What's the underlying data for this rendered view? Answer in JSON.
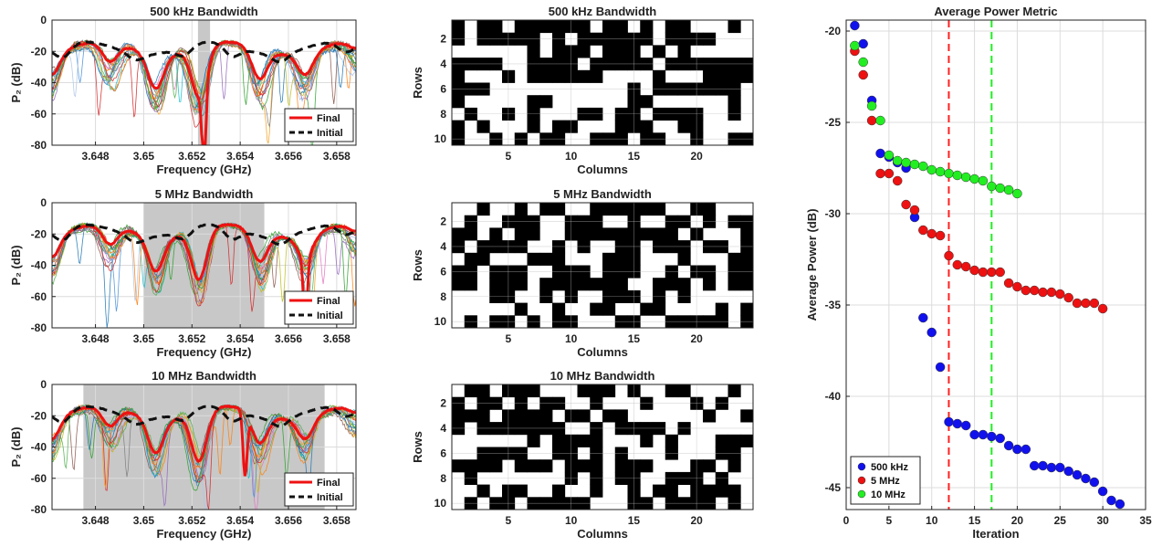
{
  "chart_data": [
    {
      "id": "p1",
      "type": "line",
      "title": "500 kHz Bandwidth",
      "xlabel": "Frequency (GHz)",
      "ylabel": "P₂ (dB)",
      "xlim": [
        3.6462,
        3.6588
      ],
      "ylim": [
        -80,
        0
      ],
      "xticks": [
        3.648,
        3.65,
        3.652,
        3.654,
        3.656,
        3.658
      ],
      "xticklabels": [
        "3.648",
        "3.65",
        "3.652",
        "3.654",
        "3.656",
        "3.658"
      ],
      "yticks": [
        0,
        -20,
        -40,
        -60,
        -80
      ],
      "band": [
        3.65225,
        3.65275
      ],
      "legend": [
        "Final",
        "Initial"
      ],
      "final_dip": 3.6525,
      "final_depth": -70
    },
    {
      "id": "p2",
      "type": "line",
      "title": "5 MHz Bandwidth",
      "xlabel": "Frequency (GHz)",
      "ylabel": "P₂ (dB)",
      "xlim": [
        3.6462,
        3.6588
      ],
      "ylim": [
        -80,
        0
      ],
      "xticks": [
        3.648,
        3.65,
        3.652,
        3.654,
        3.656,
        3.658
      ],
      "xticklabels": [
        "3.648",
        "3.65",
        "3.652",
        "3.654",
        "3.656",
        "3.658"
      ],
      "yticks": [
        0,
        -20,
        -40,
        -60,
        -80
      ],
      "band": [
        3.65,
        3.655
      ],
      "legend": [
        "Final",
        "Initial"
      ],
      "final_dip": 3.6567,
      "final_depth": -62
    },
    {
      "id": "p3",
      "type": "line",
      "title": "10 MHz Bandwidth",
      "xlabel": "Frequency (GHz)",
      "ylabel": "P₂ (dB)",
      "xlim": [
        3.6462,
        3.6588
      ],
      "ylim": [
        -80,
        0
      ],
      "xticks": [
        3.648,
        3.65,
        3.652,
        3.654,
        3.656,
        3.658
      ],
      "xticklabels": [
        "3.648",
        "3.65",
        "3.652",
        "3.654",
        "3.656",
        "3.658"
      ],
      "yticks": [
        0,
        -20,
        -40,
        -60,
        -80
      ],
      "band": [
        3.6475,
        3.6575
      ],
      "legend": [
        "Final",
        "Initial"
      ],
      "final_dip": 3.6542,
      "final_depth": -60
    },
    {
      "id": "h1",
      "type": "heatmap",
      "title": "500 kHz Bandwidth",
      "xlabel": "Columns",
      "ylabel": "Rows",
      "xticks": [
        5,
        10,
        15,
        20
      ],
      "yticks": [
        2,
        4,
        6,
        8,
        10
      ],
      "grid": [
        "101101111110110101100010",
        "101111101011111101111000",
        "000000101110111010100000",
        "111100111101111101111111",
        "100010111111000010001111",
        "111000000000001011111110",
        "100000110000001100000010",
        "010010100011011011110010",
        "101000101100011100110000",
        "100101011001110110010011"
      ]
    },
    {
      "id": "h2",
      "type": "heatmap",
      "title": "5 MHz Bandwidth",
      "xlabel": "Columns",
      "ylabel": "Rows",
      "xticks": [
        5,
        10,
        15,
        20
      ],
      "yticks": [
        2,
        4,
        6,
        8,
        10
      ],
      "grid": [
        "001001011001111110011000",
        "010011100111001001101011",
        "110101100111111111010001",
        "101111001010011011101101",
        "011000111000111000100011",
        "110111001110111001011011",
        "110111011111110011101011",
        "000110010100111010100000",
        "000001001001100110000101",
        "010110101100011001111101"
      ]
    },
    {
      "id": "h3",
      "type": "heatmap",
      "title": "10 MHz Bandwidth",
      "xlabel": "Columns",
      "ylabel": "Rows",
      "xticks": [
        5,
        10,
        15,
        20
      ],
      "yticks": [
        2,
        4,
        6,
        8,
        10
      ],
      "grid": [
        "011011100011101001100010",
        "101101011001000100010100",
        "111011110110110000001001",
        "101111111001011110100000",
        "000000101111000101000111",
        "001111001101010001000110",
        "111101110111011100011010",
        "010000000101011001110100",
        "001011001001001011011110",
        "010110111110001101111010"
      ]
    },
    {
      "id": "s1",
      "type": "scatter",
      "title": "Average Power Metric",
      "xlabel": "Iteration",
      "ylabel": "Average Power (dB)",
      "xlim": [
        0,
        35
      ],
      "ylim": [
        -46.2,
        -19.4
      ],
      "xticks": [
        0,
        5,
        10,
        15,
        20,
        25,
        30,
        35
      ],
      "yticks": [
        -20,
        -25,
        -30,
        -35,
        -40,
        -45
      ],
      "vlines": [
        {
          "x": 12,
          "color": "#ff2020"
        },
        {
          "x": 17,
          "color": "#22ee22"
        }
      ],
      "legend_position": "bottom-left",
      "series": [
        {
          "name": "500 kHz",
          "color": "#1111ee",
          "x": [
            1,
            2,
            3,
            4,
            5,
            6,
            7,
            8,
            9,
            10,
            11,
            12,
            13,
            14,
            15,
            16,
            17,
            18,
            19,
            20,
            21,
            22,
            23,
            24,
            25,
            26,
            27,
            28,
            29,
            30,
            31,
            32
          ],
          "y": [
            -19.7,
            -20.7,
            -23.8,
            -26.7,
            -26.9,
            -27.2,
            -27.5,
            -30.2,
            -35.7,
            -36.5,
            -38.4,
            -41.4,
            -41.5,
            -41.6,
            -42.1,
            -42.1,
            -42.2,
            -42.3,
            -42.7,
            -42.9,
            -42.9,
            -43.8,
            -43.8,
            -43.9,
            -43.9,
            -44.1,
            -44.3,
            -44.5,
            -44.7,
            -45.2,
            -45.7,
            -45.9
          ]
        },
        {
          "name": "5 MHz",
          "color": "#ee1111",
          "x": [
            1,
            2,
            3,
            4,
            5,
            6,
            7,
            8,
            9,
            10,
            11,
            12,
            13,
            14,
            15,
            16,
            17,
            18,
            19,
            20,
            21,
            22,
            23,
            24,
            25,
            26,
            27,
            28,
            29,
            30
          ],
          "y": [
            -21.1,
            -22.4,
            -24.9,
            -27.8,
            -27.8,
            -28.2,
            -29.5,
            -29.8,
            -30.9,
            -31.1,
            -31.2,
            -32.3,
            -32.8,
            -32.9,
            -33.1,
            -33.2,
            -33.2,
            -33.2,
            -33.8,
            -34.0,
            -34.2,
            -34.2,
            -34.3,
            -34.3,
            -34.4,
            -34.6,
            -34.9,
            -34.9,
            -34.9,
            -35.2
          ]
        },
        {
          "name": "10 MHz",
          "color": "#22ee22",
          "x": [
            1,
            2,
            3,
            4,
            5,
            6,
            7,
            8,
            9,
            10,
            11,
            12,
            13,
            14,
            15,
            16,
            17,
            18,
            19,
            20
          ],
          "y": [
            -20.8,
            -21.7,
            -24.1,
            -24.9,
            -26.8,
            -27.1,
            -27.2,
            -27.3,
            -27.4,
            -27.6,
            -27.7,
            -27.8,
            -27.9,
            -28.0,
            -28.1,
            -28.2,
            -28.5,
            -28.6,
            -28.7,
            -28.9
          ]
        }
      ]
    }
  ]
}
